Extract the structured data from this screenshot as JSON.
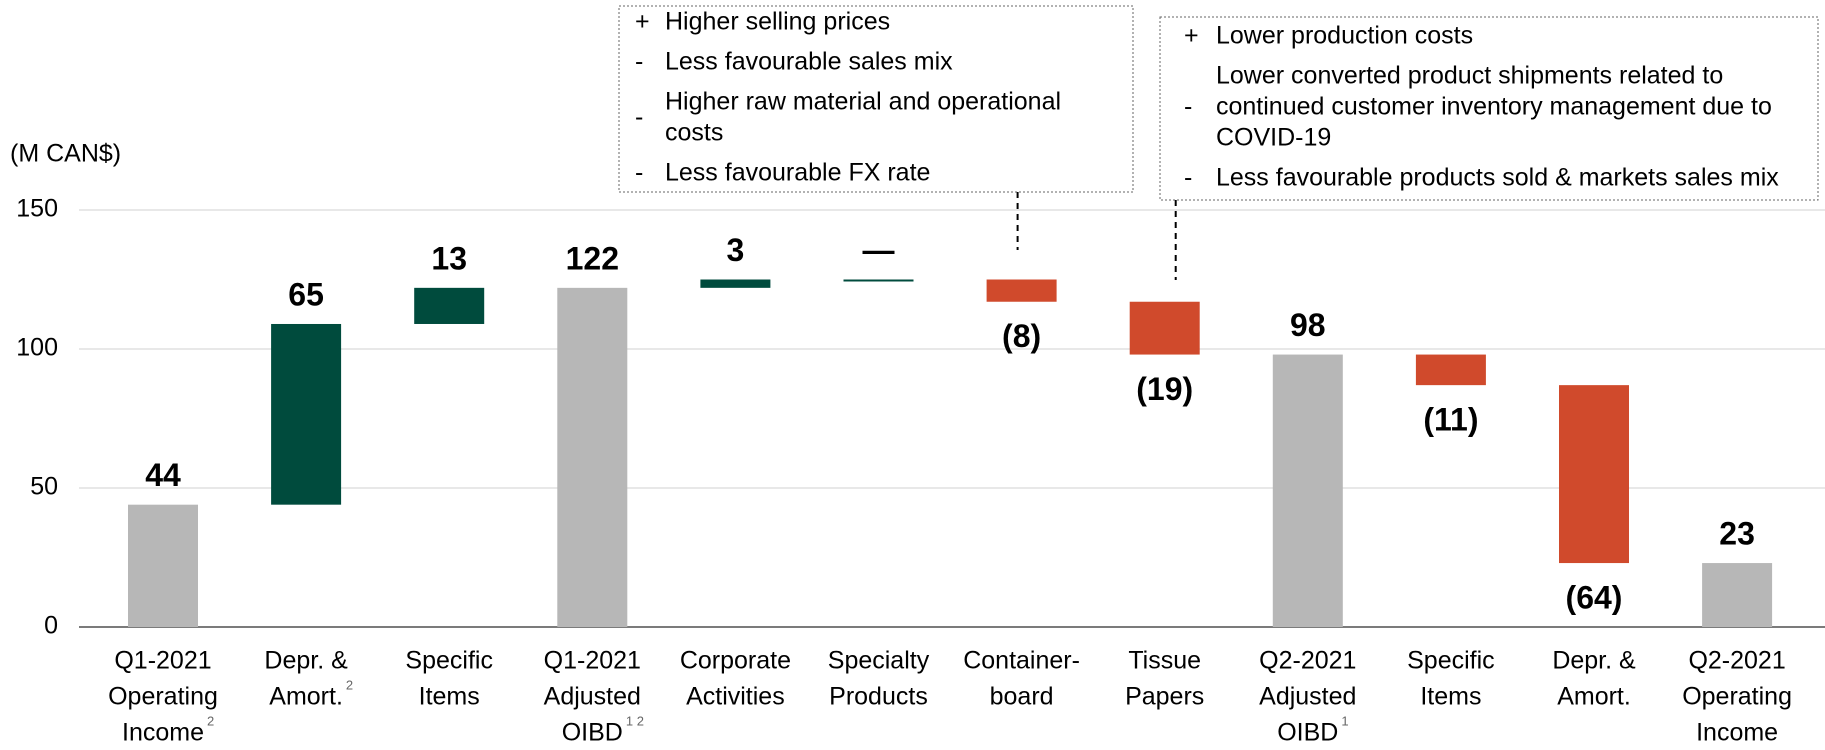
{
  "chart_data": {
    "type": "waterfall",
    "y_axis_label": "(M CAN$)",
    "categories": [
      [
        "Q1-2021",
        "Operating",
        "Income"
      ],
      [
        "Depr. &",
        "Amort."
      ],
      [
        "Specific",
        "Items"
      ],
      [
        "Q1-2021",
        "Adjusted",
        "OIBD"
      ],
      [
        "Corporate",
        "Activities"
      ],
      [
        "Specialty",
        "Products"
      ],
      [
        "Container-",
        "board"
      ],
      [
        "Tissue",
        "Papers"
      ],
      [
        "Q2-2021",
        "Adjusted",
        "OIBD"
      ],
      [
        "Specific",
        "Items"
      ],
      [
        "Depr. &",
        "Amort."
      ],
      [
        "Q2-2021",
        "Operating",
        "Income"
      ]
    ],
    "category_notes": [
      "2",
      "2",
      null,
      "1 2",
      null,
      null,
      null,
      null,
      "1",
      null,
      null,
      null
    ],
    "measure": [
      "total",
      "relative",
      "relative",
      "total",
      "relative",
      "relative",
      "relative",
      "relative",
      "total",
      "relative",
      "relative",
      "total"
    ],
    "values": [
      44,
      65,
      13,
      122,
      3,
      0,
      -8,
      -19,
      98,
      -11,
      -64,
      23
    ],
    "value_labels": [
      "44",
      "65",
      "13",
      "122",
      "3",
      "—",
      "(8)",
      "(19)",
      "98",
      "(11)",
      "(64)",
      "23"
    ],
    "colors": {
      "total": "#b7b7b7",
      "increase": "#004b3d",
      "decrease": "#d04a2c"
    },
    "ylim": [
      0,
      150
    ],
    "yticks": [
      0,
      50,
      100,
      150
    ],
    "grid": true,
    "annotations": [
      {
        "category": 6,
        "items": [
          {
            "sign": "+",
            "lines": [
              "Higher selling prices"
            ]
          },
          {
            "sign": "-",
            "lines": [
              "Less favourable sales mix"
            ]
          },
          {
            "sign": "-",
            "lines": [
              "Higher raw material and operational",
              "costs"
            ]
          },
          {
            "sign": "-",
            "lines": [
              "Less favourable FX rate"
            ]
          }
        ]
      },
      {
        "category": 7,
        "items": [
          {
            "sign": "+",
            "lines": [
              "Lower production costs"
            ]
          },
          {
            "sign": "-",
            "lines": [
              "Lower converted product shipments related to",
              "continued customer inventory management due to",
              "COVID-19"
            ]
          },
          {
            "sign": "-",
            "lines": [
              "Less favourable products sold & markets sales mix"
            ]
          }
        ]
      }
    ]
  }
}
